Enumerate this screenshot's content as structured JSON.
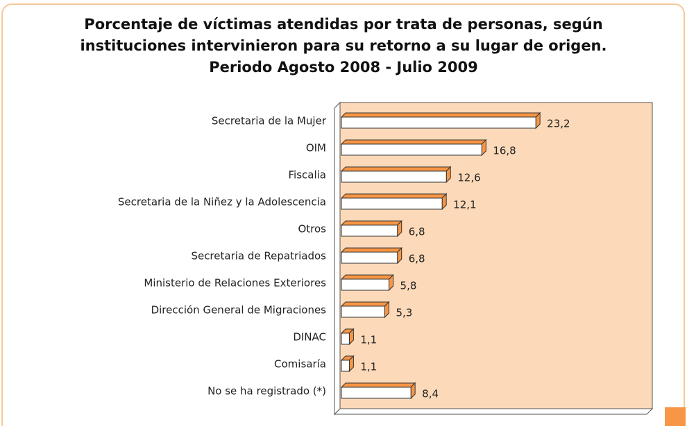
{
  "chart_data": {
    "type": "bar3d_horizontal",
    "title": [
      "Porcentaje de víctimas atendidas por trata de personas, según",
      "instituciones intervinieron para su retorno a su lugar de origen.",
      "Periodo Agosto 2008 - Julio 2009"
    ],
    "categories": [
      "Secretaria de la Mujer",
      "OIM",
      "Fiscalia",
      "Secretaria de la Niñez y la Adolescencia",
      "Otros",
      "Secretaria de Repatriados",
      "Ministerio de Relaciones Exteriores",
      "Dirección General de Migraciones",
      "DINAC",
      "Comisaría",
      "No se ha registrado (*)"
    ],
    "values": [
      23.2,
      16.8,
      12.6,
      12.1,
      6.8,
      6.8,
      5.8,
      5.3,
      1.1,
      1.1,
      8.4
    ],
    "value_labels": [
      "23,2",
      "16,8",
      "12,6",
      "12,1",
      "6,8",
      "6,8",
      "5,8",
      "5,3",
      "1,1",
      "1,1",
      "8,4"
    ],
    "color": "#f79646",
    "xlim": [
      0,
      37
    ]
  }
}
